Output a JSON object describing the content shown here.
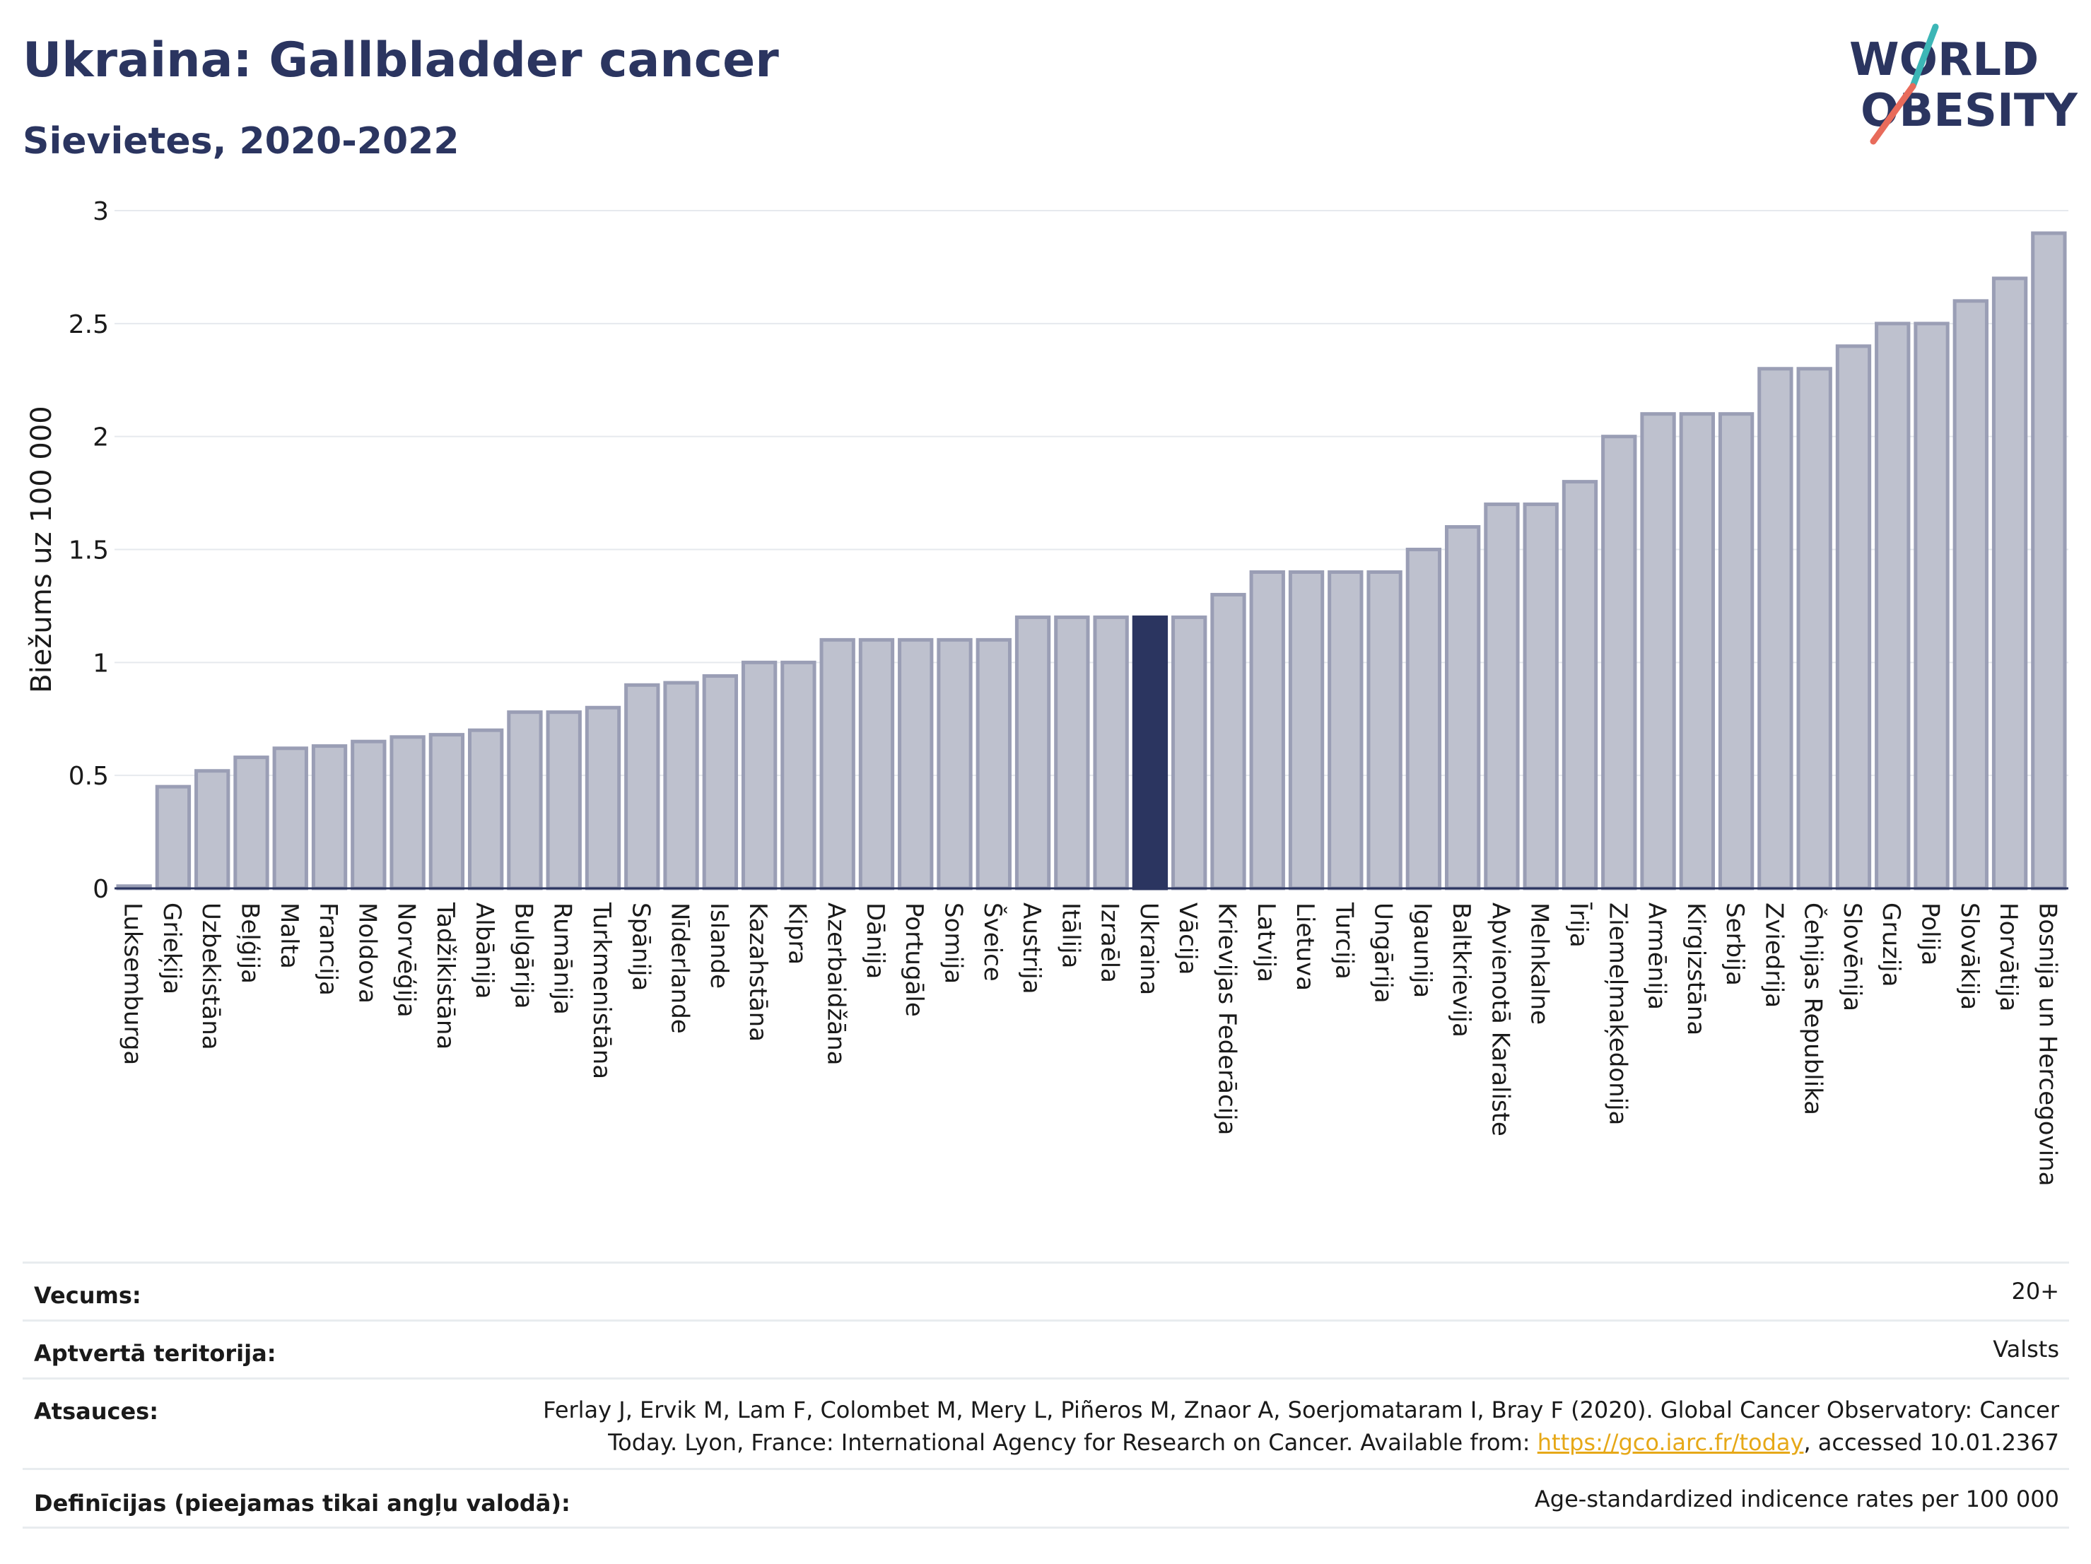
{
  "header": {
    "title": "Ukraina: Gallbladder cancer",
    "subtitle": "Sievietes, 2020-2022",
    "logo_line1": "WORLD",
    "logo_line2": "OBESITY"
  },
  "colors": {
    "bar": "#bec1ce",
    "bar_border": "#9a9eb5",
    "highlight": "#2b3560",
    "accent_teal": "#3cb6b6",
    "accent_red": "#e86b5b"
  },
  "chart_data": {
    "type": "bar",
    "ylabel": "Biežums uz 100 000",
    "ylim": [
      0,
      3
    ],
    "yticks": [
      0,
      0.5,
      1,
      1.5,
      2,
      2.5,
      3
    ],
    "ytick_labels": [
      "0",
      "0.5",
      "1",
      "1.5",
      "2",
      "2.5",
      "3"
    ],
    "grid": true,
    "highlight": "Ukraina",
    "categories": [
      "Luksemburga",
      "Grieķija",
      "Uzbekistāna",
      "Beļģija",
      "Malta",
      "Francija",
      "Moldova",
      "Norvēģija",
      "Tadžikistāna",
      "Albānija",
      "Bulgārija",
      "Rumānija",
      "Turkmenistāna",
      "Spānija",
      "Nīderlande",
      "Islande",
      "Kazahstāna",
      "Kipra",
      "Azerbaidžāna",
      "Dānija",
      "Portugāle",
      "Somija",
      "Šveice",
      "Austrija",
      "Itālija",
      "Izraēla",
      "Ukraina",
      "Vācija",
      "Krievijas Federācija",
      "Latvija",
      "Lietuva",
      "Turcija",
      "Ungārija",
      "Igaunija",
      "Baltkrievija",
      "Apvienotā Karaliste",
      "Melnkalne",
      "Īrija",
      "Ziemeļmaķedonija",
      "Armēnija",
      "Kirgizstāna",
      "Serbija",
      "Zviedrija",
      "Čehijas Republika",
      "Slovēnija",
      "Gruzija",
      "Polija",
      "Slovākija",
      "Horvātija",
      "Bosnija un Hercegovina"
    ],
    "values": [
      0.01,
      0.45,
      0.52,
      0.58,
      0.62,
      0.63,
      0.65,
      0.67,
      0.68,
      0.7,
      0.78,
      0.78,
      0.8,
      0.9,
      0.91,
      0.94,
      1.0,
      1.0,
      1.1,
      1.1,
      1.1,
      1.1,
      1.1,
      1.2,
      1.2,
      1.2,
      1.2,
      1.2,
      1.3,
      1.4,
      1.4,
      1.4,
      1.4,
      1.5,
      1.6,
      1.7,
      1.7,
      1.8,
      2.0,
      2.1,
      2.1,
      2.1,
      2.3,
      2.3,
      2.4,
      2.5,
      2.5,
      2.6,
      2.7,
      2.9
    ]
  },
  "info": {
    "age_label": "Vecums:",
    "age_value": "20+",
    "coverage_label": "Aptvertā teritorija:",
    "coverage_value": "Valsts",
    "refs_label": "Atsauces:",
    "refs_line1": "Ferlay J, Ervik M, Lam F, Colombet M, Mery L, Piñeros M, Znaor A, Soerjomataram I, Bray F (2020). Global Cancer Observatory: Cancer",
    "refs_line2_pre": "Today. Lyon, France: International Agency for Research on Cancer. Available from: ",
    "refs_link": "https://gco.iarc.fr/today",
    "refs_line2_post": ", accessed 10.01.2367",
    "defs_label": "Definīcijas (pieejamas tikai angļu valodā):",
    "defs_value": "Age-standardized indicence rates per 100 000"
  }
}
